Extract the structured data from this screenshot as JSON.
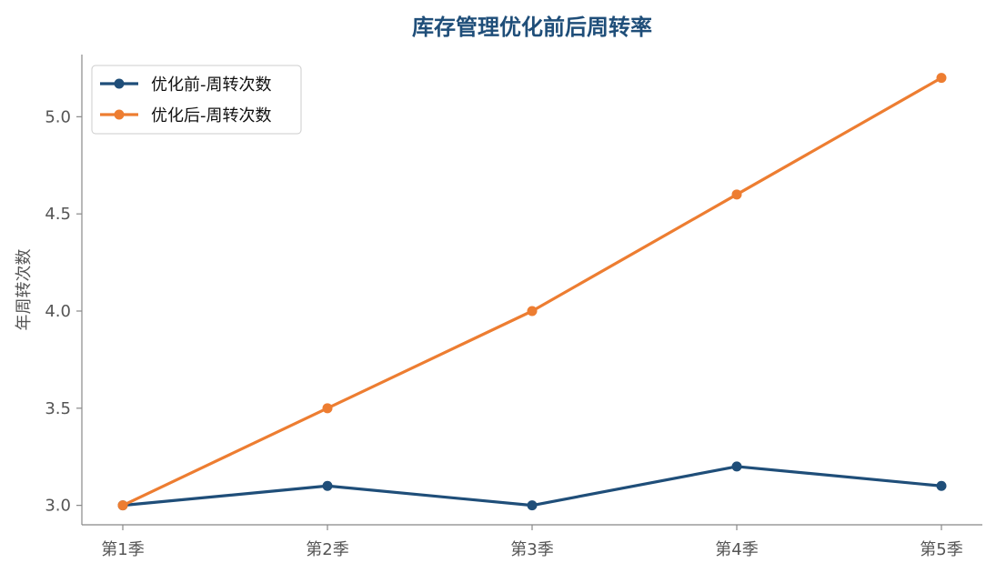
{
  "chart_data": {
    "type": "line",
    "title": "库存管理优化前后周转率",
    "xlabel": "",
    "ylabel": "年周转次数",
    "categories": [
      "第1季",
      "第2季",
      "第3季",
      "第4季",
      "第5季"
    ],
    "ylim": [
      2.9,
      5.32
    ],
    "yticks": [
      "3.0",
      "3.5",
      "4.0",
      "4.5",
      "5.0"
    ],
    "grid": false,
    "legend_position": "top-left",
    "series": [
      {
        "name": "优化前-周转次数",
        "color": "#1f4e79",
        "values": [
          3.0,
          3.1,
          3.0,
          3.2,
          3.1
        ]
      },
      {
        "name": "优化后-周转次数",
        "color": "#ed7d31",
        "values": [
          3.0,
          3.5,
          4.0,
          4.6,
          5.2
        ]
      }
    ],
    "colors": {
      "title": "#1f4e79",
      "axis": "#888888",
      "tick_text": "#555555"
    }
  }
}
